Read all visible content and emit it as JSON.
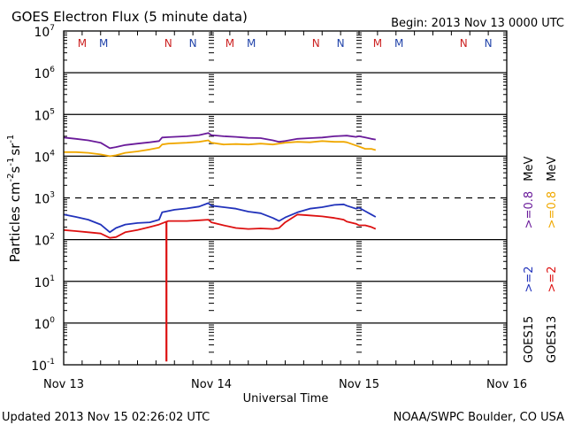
{
  "chart_data": {
    "type": "line",
    "title": "GOES Electron Flux (5 minute data)",
    "begin_label": "Begin: 2013 Nov 13 0000 UTC",
    "ylabel": "Particles cm-2s-1sr-1",
    "ylabel_parts": {
      "base": "Particles cm",
      "e1": "-2",
      "s": "s",
      "e2": "-1",
      "sr": "sr",
      "e3": "-1"
    },
    "xlabel": "Universal Time",
    "yscale": "log",
    "ylim": [
      0.1,
      10000000
    ],
    "y_tick_labels": [
      {
        "base": "10",
        "exp": "7",
        "value": 10000000
      },
      {
        "base": "10",
        "exp": "6",
        "value": 1000000
      },
      {
        "base": "10",
        "exp": "5",
        "value": 100000
      },
      {
        "base": "10",
        "exp": "4",
        "value": 10000
      },
      {
        "base": "10",
        "exp": "3",
        "value": 1000
      },
      {
        "base": "10",
        "exp": "2",
        "value": 100
      },
      {
        "base": "10",
        "exp": "1",
        "value": 10
      },
      {
        "base": "10",
        "exp": "0",
        "value": 1
      },
      {
        "base": "10",
        "exp": "-1",
        "value": 0.1
      }
    ],
    "xlim_hours": [
      0,
      72
    ],
    "x_tick_labels": [
      {
        "label": "Nov 13",
        "hour": 0
      },
      {
        "label": "Nov 14",
        "hour": 24
      },
      {
        "label": "Nov 15",
        "hour": 48
      },
      {
        "label": "Nov 16",
        "hour": 72
      }
    ],
    "threshold_dashed": 1000,
    "grid": "horizontal decades",
    "mn_markers": [
      {
        "label": "M",
        "hour": 3,
        "color": "#cc2222"
      },
      {
        "label": "M",
        "hour": 6.5,
        "color": "#2244aa"
      },
      {
        "label": "N",
        "hour": 17,
        "color": "#cc2222"
      },
      {
        "label": "N",
        "hour": 21,
        "color": "#2244aa"
      },
      {
        "label": "M",
        "hour": 27,
        "color": "#cc2222"
      },
      {
        "label": "M",
        "hour": 30.5,
        "color": "#2244aa"
      },
      {
        "label": "N",
        "hour": 41,
        "color": "#cc2222"
      },
      {
        "label": "N",
        "hour": 45,
        "color": "#2244aa"
      },
      {
        "label": "M",
        "hour": 51,
        "color": "#cc2222"
      },
      {
        "label": "M",
        "hour": 54.5,
        "color": "#2244aa"
      },
      {
        "label": "N",
        "hour": 65,
        "color": "#cc2222"
      },
      {
        "label": "N",
        "hour": 69,
        "color": "#2244aa"
      }
    ],
    "legend": {
      "placement": "right",
      "columns": [
        {
          "satellite": "GOES15",
          "entries": [
            {
              "label": ">=2",
              "color": "#2233bb"
            },
            {
              "label": ">=0.8",
              "color": "#6a1b9a"
            },
            {
              "label": "MeV",
              "color": "#000000"
            }
          ]
        },
        {
          "satellite": "GOES13",
          "entries": [
            {
              "label": ">=2",
              "color": "#dd1111"
            },
            {
              "label": ">=0.8",
              "color": "#f0a800"
            },
            {
              "label": "MeV",
              "color": "#000000"
            }
          ]
        }
      ]
    },
    "series": [
      {
        "name": "GOES15 >=0.8 MeV",
        "color": "#6a1b9a",
        "hours": [
          0,
          2,
          4,
          6,
          7.5,
          8.5,
          10,
          12,
          14,
          15.5,
          16,
          17,
          20,
          22,
          23.5,
          24,
          26,
          28,
          30,
          32,
          34,
          35,
          36,
          38,
          40,
          42,
          44,
          46,
          47.5,
          48,
          49,
          50,
          50.7
        ],
        "values": [
          28000,
          26000,
          24000,
          21000,
          15500,
          16500,
          18500,
          20000,
          21500,
          23000,
          28000,
          28500,
          30000,
          32000,
          36000,
          32000,
          30000,
          29000,
          27500,
          27000,
          24000,
          22000,
          23000,
          26000,
          27000,
          28000,
          30000,
          31000,
          29000,
          30000,
          28000,
          26000,
          25000
        ]
      },
      {
        "name": "GOES13 >=0.8 MeV",
        "color": "#f0a800",
        "hours": [
          0,
          2,
          4,
          6,
          7.5,
          8.5,
          10,
          12,
          14,
          15.5,
          16,
          17,
          20,
          22,
          23.5,
          24,
          26,
          28,
          30,
          32,
          34,
          36,
          38,
          40,
          42,
          44,
          45.5,
          46,
          47.5,
          48,
          49,
          50,
          50.7
        ],
        "values": [
          12500,
          12500,
          12000,
          11000,
          10000,
          10500,
          12000,
          13000,
          14500,
          16000,
          19000,
          20000,
          21000,
          22000,
          24000,
          21000,
          19000,
          19500,
          19000,
          20000,
          19000,
          21000,
          22000,
          21500,
          23000,
          22000,
          22000,
          21500,
          18000,
          17000,
          15000,
          15000,
          14000
        ]
      },
      {
        "name": "GOES15 >=2 MeV",
        "color": "#2233bb",
        "hours": [
          0,
          2,
          4,
          6,
          7.5,
          8.5,
          10,
          12,
          14,
          15.5,
          16,
          18,
          20,
          22,
          23.5,
          24,
          26,
          28,
          30,
          32,
          34,
          35,
          36,
          38,
          40,
          42,
          44,
          45.5,
          46,
          47.5,
          48,
          49,
          50,
          50.7
        ],
        "values": [
          400,
          350,
          300,
          230,
          150,
          190,
          230,
          250,
          260,
          300,
          450,
          520,
          560,
          620,
          750,
          650,
          600,
          550,
          470,
          430,
          330,
          280,
          340,
          450,
          550,
          600,
          680,
          700,
          650,
          550,
          580,
          480,
          400,
          350
        ]
      },
      {
        "name": "GOES13 >=2 MeV",
        "color": "#dd1111",
        "hours": [
          0,
          2,
          4,
          6,
          7.5,
          8.5,
          10,
          12,
          14,
          15.5,
          16.7,
          17,
          20,
          22,
          23.5,
          24,
          26,
          28,
          30,
          32,
          34,
          35,
          36,
          38,
          40,
          42,
          44,
          45.5,
          46,
          47.5,
          48,
          49,
          50,
          50.7
        ],
        "values": [
          170,
          160,
          150,
          140,
          110,
          115,
          150,
          170,
          200,
          230,
          270,
          280,
          280,
          290,
          300,
          260,
          220,
          190,
          180,
          185,
          180,
          190,
          260,
          400,
          380,
          360,
          330,
          300,
          270,
          240,
          220,
          220,
          200,
          180
        ]
      },
      {
        "name": "GOES13 >=2 MeV dropout spike",
        "color": "#dd1111",
        "hours": [
          16.7,
          16.7
        ],
        "values": [
          270,
          0.12
        ]
      }
    ]
  },
  "footer": {
    "updated": "Updated 2013 Nov 15 02:26:02 UTC",
    "credit": "NOAA/SWPC Boulder, CO USA"
  }
}
